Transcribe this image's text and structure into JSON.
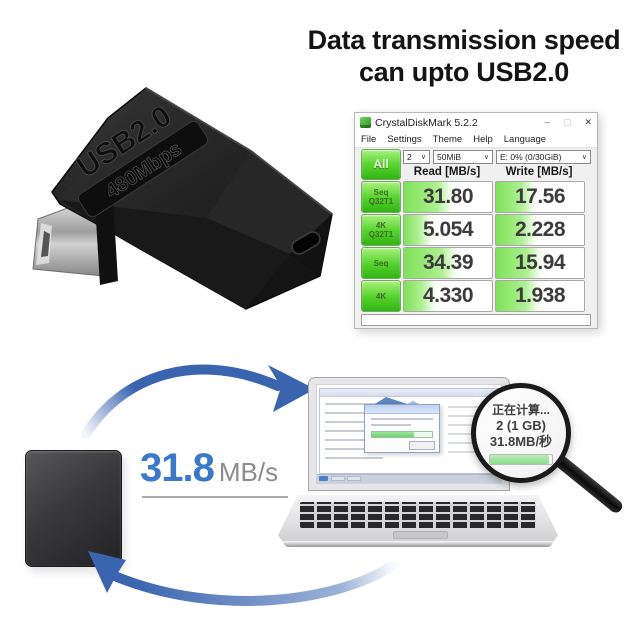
{
  "headline": {
    "line1": "Data transmission speed",
    "line2": "can upto USB2.0"
  },
  "adapter": {
    "usb_label": "USB2.0",
    "speed_label": "480Mbps"
  },
  "diskmark": {
    "window_title": "CrystalDiskMark 5.2.2",
    "controls": {
      "minimize": "–",
      "maximize": "▢",
      "close": "✕"
    },
    "menu": [
      "File",
      "Settings",
      "Theme",
      "Help",
      "Language"
    ],
    "all_button": "All",
    "test_count": "2",
    "test_size": "50MiB",
    "drive": "E: 0% (0/30GiB)",
    "read_header": "Read [MB/s]",
    "write_header": "Write [MB/s]",
    "rows": [
      {
        "label1": "Seq",
        "label2": "Q32T1",
        "read": "31.80",
        "write": "17.56",
        "read_fill": 52,
        "write_fill": 42
      },
      {
        "label1": "4K",
        "label2": "Q32T1",
        "read": "5.054",
        "write": "2.228",
        "read_fill": 30,
        "write_fill": 43
      },
      {
        "label1": "Seq",
        "label2": "",
        "read": "34.39",
        "write": "15.94",
        "read_fill": 57,
        "write_fill": 49
      },
      {
        "label1": "4K",
        "label2": "",
        "read": "4.330",
        "write": "1.938",
        "read_fill": 34,
        "write_fill": 47
      }
    ],
    "comment": ""
  },
  "transfer": {
    "speed_value": "31.8",
    "speed_unit": "MB/s"
  },
  "magnifier": {
    "status_line": "正在计算...",
    "size_line": "2 (1 GB)",
    "speed_line": "31.8MB/秒",
    "progress_percent": 95
  },
  "icons": {
    "chevron": "∨"
  },
  "colors": {
    "arrow_blue": "#3a64ae",
    "speed_blue": "#3a78cc",
    "diskmark_green": "#4ecb2a",
    "body_black": "#1c1c1c"
  }
}
